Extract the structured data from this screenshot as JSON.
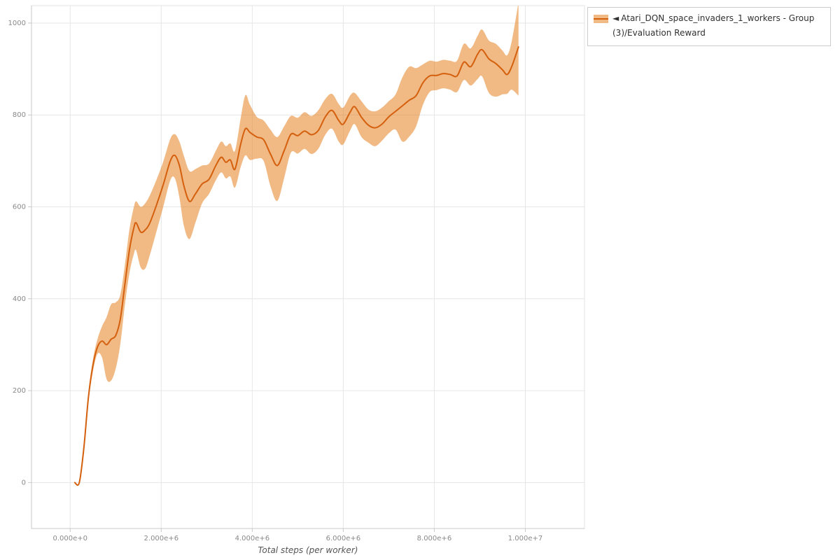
{
  "legend": {
    "collapse_marker": "◄",
    "series_label": "Atari_DQN_space_invaders_1_workers - Group(3)/Evaluation Reward"
  },
  "chart_data": {
    "type": "line",
    "title": "",
    "xlabel": "Total steps (per worker)",
    "ylabel": "",
    "grid": true,
    "legend_position": "top-right-outside",
    "x_range": [
      -850000,
      11300000
    ],
    "y_range": [
      -100,
      1038
    ],
    "style": {
      "grid_color": "#e6e6e6",
      "plot_border_color": "#e3e3e3",
      "axis_line_color": "#c8c8c8",
      "tick_label_color": "#898989",
      "axis_title_color": "#555555",
      "legend_border_color": "#cccccc",
      "legend_text_color": "#303030",
      "background_color": "#ffffff"
    },
    "x_ticks": [
      {
        "value": 0,
        "label": "0.000e+0"
      },
      {
        "value": 2000000,
        "label": "2.000e+6"
      },
      {
        "value": 4000000,
        "label": "4.000e+6"
      },
      {
        "value": 6000000,
        "label": "6.000e+6"
      },
      {
        "value": 8000000,
        "label": "8.000e+6"
      },
      {
        "value": 10000000,
        "label": "1.000e+7"
      }
    ],
    "y_ticks": [
      {
        "value": 0,
        "label": "0"
      },
      {
        "value": 200,
        "label": "200"
      },
      {
        "value": 400,
        "label": "400"
      },
      {
        "value": 600,
        "label": "600"
      },
      {
        "value": 800,
        "label": "800"
      },
      {
        "value": 1000,
        "label": "1000"
      }
    ],
    "series": [
      {
        "name": "Atari_DQN_space_invaders_1_workers - Group(3)/Evaluation Reward",
        "line_color": "#d4600e",
        "band_color": "#e5801f",
        "band_opacity": 0.55,
        "x": [
          100000,
          200000,
          300000,
          400000,
          500000,
          600000,
          700000,
          800000,
          900000,
          1000000,
          1100000,
          1200000,
          1300000,
          1400000,
          1450000,
          1550000,
          1650000,
          1750000,
          1900000,
          2050000,
          2200000,
          2300000,
          2400000,
          2500000,
          2620000,
          2750000,
          2900000,
          3050000,
          3200000,
          3320000,
          3420000,
          3520000,
          3620000,
          3750000,
          3850000,
          3950000,
          4100000,
          4250000,
          4400000,
          4550000,
          4700000,
          4850000,
          5000000,
          5150000,
          5300000,
          5450000,
          5600000,
          5750000,
          5900000,
          6000000,
          6150000,
          6250000,
          6400000,
          6550000,
          6700000,
          6850000,
          7000000,
          7150000,
          7300000,
          7450000,
          7600000,
          7750000,
          7900000,
          8050000,
          8200000,
          8350000,
          8500000,
          8650000,
          8800000,
          8950000,
          9050000,
          9200000,
          9350000,
          9500000,
          9600000,
          9700000,
          9850000
        ],
        "mean": [
          0,
          0,
          75,
          185,
          255,
          295,
          308,
          300,
          312,
          320,
          355,
          430,
          505,
          555,
          565,
          545,
          550,
          565,
          605,
          650,
          700,
          712,
          690,
          645,
          612,
          628,
          650,
          660,
          690,
          708,
          697,
          702,
          682,
          738,
          770,
          762,
          752,
          746,
          715,
          690,
          722,
          758,
          755,
          765,
          757,
          766,
          795,
          810,
          788,
          780,
          806,
          818,
          795,
          778,
          772,
          780,
          796,
          808,
          820,
          832,
          842,
          870,
          885,
          886,
          890,
          888,
          885,
          915,
          905,
          932,
          942,
          922,
          912,
          898,
          888,
          905,
          948
        ],
        "lower": [
          0,
          0,
          68,
          175,
          242,
          280,
          272,
          225,
          222,
          248,
          300,
          385,
          455,
          498,
          505,
          468,
          466,
          495,
          548,
          602,
          658,
          662,
          620,
          558,
          530,
          565,
          608,
          628,
          658,
          675,
          662,
          666,
          642,
          688,
          712,
          702,
          705,
          700,
          645,
          613,
          662,
          718,
          716,
          726,
          715,
          726,
          756,
          770,
          742,
          736,
          766,
          780,
          752,
          740,
          732,
          744,
          760,
          768,
          742,
          753,
          775,
          822,
          850,
          854,
          858,
          855,
          850,
          876,
          864,
          878,
          884,
          848,
          840,
          845,
          846,
          855,
          842
        ],
        "upper": [
          0,
          0,
          82,
          195,
          268,
          312,
          340,
          360,
          388,
          392,
          408,
          472,
          550,
          600,
          612,
          600,
          608,
          625,
          660,
          700,
          748,
          758,
          742,
          710,
          678,
          682,
          690,
          694,
          722,
          742,
          732,
          738,
          722,
          795,
          843,
          822,
          796,
          788,
          768,
          752,
          775,
          798,
          794,
          806,
          798,
          810,
          834,
          846,
          824,
          816,
          842,
          848,
          830,
          812,
          808,
          816,
          830,
          845,
          882,
          905,
          902,
          910,
          918,
          916,
          920,
          918,
          918,
          955,
          945,
          972,
          986,
          962,
          955,
          940,
          930,
          960,
          1045
        ]
      }
    ]
  }
}
